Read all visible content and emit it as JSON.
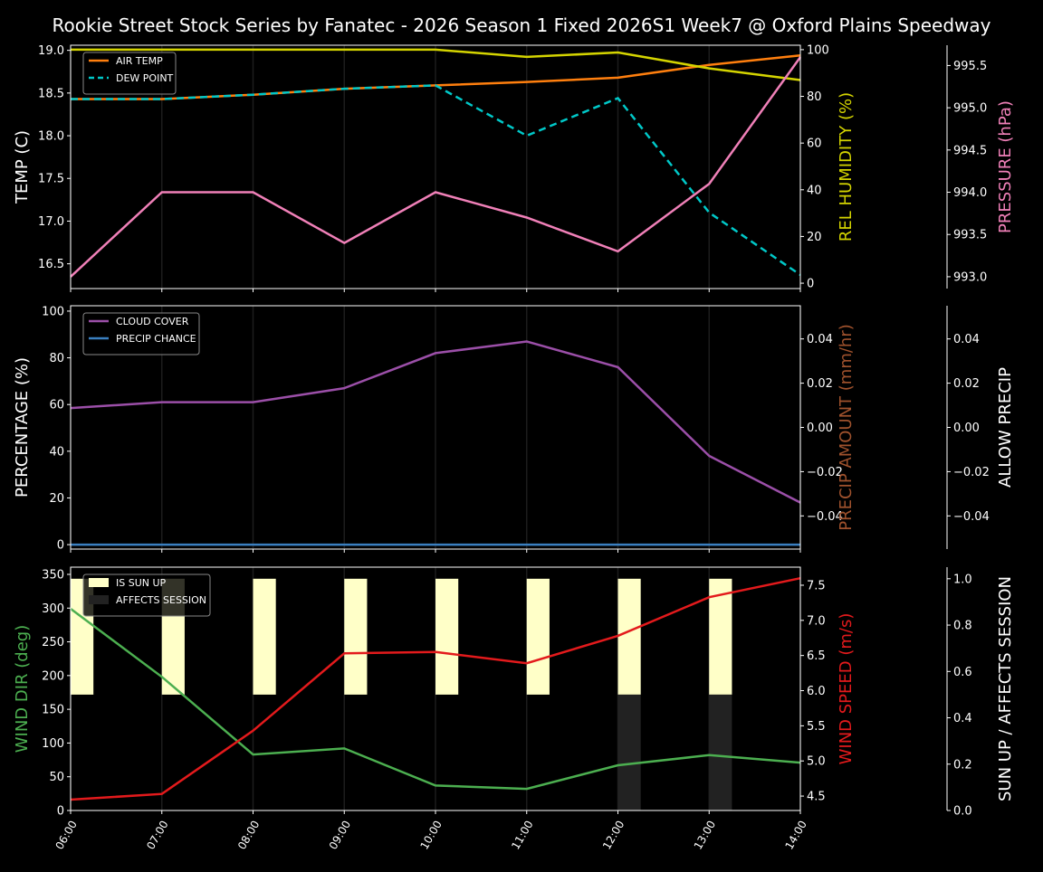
{
  "title": "Rookie Street Stock Series by Fanatec - 2026 Season 1 Fixed 2026S1 Week7 @ Oxford Plains Speedway",
  "chart_data": [
    {
      "type": "line",
      "x": [
        "06:00",
        "07:00",
        "08:00",
        "09:00",
        "10:00",
        "11:00",
        "12:00",
        "13:00",
        "14:00"
      ],
      "axes": {
        "left": {
          "label": "TEMP (C)",
          "color": "#ffffff",
          "ylim": [
            16.21,
            19.06
          ],
          "ticks": [
            16.5,
            17.0,
            17.5,
            18.0,
            18.5,
            19.0
          ],
          "tick_labels": [
            "16.5",
            "17.0",
            "17.5",
            "18.0",
            "18.5",
            "19.0"
          ]
        },
        "right1": {
          "label": "REL HUMIDITY (%)",
          "color": "#d4d400",
          "ylim": [
            -2.3,
            101.9
          ],
          "ticks": [
            0,
            20,
            40,
            60,
            80,
            100
          ],
          "tick_labels": [
            "0",
            "20",
            "40",
            "60",
            "80",
            "100"
          ]
        },
        "right2": {
          "label": "PRESSURE (hPa)",
          "color": "#f080b8",
          "ylim": [
            992.86,
            995.74
          ],
          "ticks": [
            993.0,
            993.5,
            994.0,
            994.5,
            995.0,
            995.5
          ],
          "tick_labels": [
            "993.0",
            "993.5",
            "994.0",
            "994.5",
            "995.0",
            "995.5"
          ]
        }
      },
      "series": [
        {
          "name": "AIR TEMP",
          "axis": "left",
          "color": "#ff7f0e",
          "dash": false,
          "values": [
            18.43,
            18.43,
            18.48,
            18.55,
            18.59,
            18.63,
            18.68,
            18.83,
            18.94
          ]
        },
        {
          "name": "DEW POINT",
          "axis": "left",
          "color": "#00c8c8",
          "dash": true,
          "values": [
            18.43,
            18.43,
            18.48,
            18.55,
            18.59,
            18.0,
            18.44,
            17.1,
            16.37
          ]
        },
        {
          "axis": "right1",
          "color": "#d4d400",
          "dash": false,
          "values": [
            100,
            100,
            100,
            100,
            100,
            96.9,
            98.8,
            92,
            87
          ]
        },
        {
          "axis": "right2",
          "color": "#f080b8",
          "dash": false,
          "values": [
            993.0,
            994.0,
            994.0,
            993.4,
            994.0,
            993.7,
            993.3,
            994.1,
            995.6
          ]
        }
      ],
      "legend": "top-left",
      "grid": "vertical"
    },
    {
      "type": "line",
      "x": [
        "06:00",
        "07:00",
        "08:00",
        "09:00",
        "10:00",
        "11:00",
        "12:00",
        "13:00",
        "14:00"
      ],
      "axes": {
        "left": {
          "label": "PERCENTAGE (%)",
          "color": "#ffffff",
          "ylim": [
            -1.9,
            102.3
          ],
          "ticks": [
            0,
            20,
            40,
            60,
            80,
            100
          ],
          "tick_labels": [
            "0",
            "20",
            "40",
            "60",
            "80",
            "100"
          ]
        },
        "right1": {
          "label": "PRECIP AMOUNT (mm/hr)",
          "color": "#a0522d",
          "ylim": [
            -0.055,
            0.055
          ],
          "ticks": [
            -0.04,
            -0.02,
            0,
            0.02,
            0.04
          ],
          "tick_labels": [
            "−0.04",
            "−0.02",
            "0.00",
            "0.02",
            "0.04"
          ]
        },
        "right2": {
          "label": "ALLOW PRECIP",
          "color": "#ffffff",
          "ylim": [
            -0.055,
            0.055
          ],
          "ticks": [
            -0.04,
            -0.02,
            0,
            0.02,
            0.04
          ],
          "tick_labels": [
            "−0.04",
            "−0.02",
            "0.00",
            "0.02",
            "0.04"
          ]
        }
      },
      "series": [
        {
          "name": "CLOUD COVER",
          "axis": "left",
          "color": "#9b4fa8",
          "dash": false,
          "values": [
            58.5,
            61,
            61,
            67,
            82,
            87,
            76,
            38,
            18
          ]
        },
        {
          "name": "PRECIP CHANCE",
          "axis": "left",
          "color": "#3a7fc0",
          "dash": false,
          "values": [
            0,
            0,
            0,
            0,
            0,
            0,
            0,
            0,
            0
          ]
        }
      ],
      "legend": "top-left",
      "grid": "vertical"
    },
    {
      "type": "line",
      "x": [
        "06:00",
        "07:00",
        "08:00",
        "09:00",
        "10:00",
        "11:00",
        "12:00",
        "13:00",
        "14:00"
      ],
      "axes": {
        "left": {
          "label": "WIND DIR (deg)",
          "color": "#4caf50",
          "ylim": [
            0,
            360.7
          ],
          "ticks": [
            0,
            50,
            100,
            150,
            200,
            250,
            300,
            350
          ],
          "tick_labels": [
            "0",
            "50",
            "100",
            "150",
            "200",
            "250",
            "300",
            "350"
          ]
        },
        "right1": {
          "label": "WIND SPEED (m/s)",
          "color": "#e31a1c",
          "ylim": [
            4.295,
            7.757
          ],
          "ticks": [
            4.5,
            5.0,
            5.5,
            6.0,
            6.5,
            7.0,
            7.5
          ],
          "tick_labels": [
            "4.5",
            "5.0",
            "5.5",
            "6.0",
            "6.5",
            "7.0",
            "7.5"
          ]
        },
        "right2": {
          "label": "SUN UP / AFFECTS SESSION",
          "color": "#ffffff",
          "ylim": [
            0,
            1.05
          ],
          "ticks": [
            0,
            0.2,
            0.4,
            0.6,
            0.8,
            1.0
          ],
          "tick_labels": [
            "0.0",
            "0.2",
            "0.4",
            "0.6",
            "0.8",
            "1.0"
          ]
        }
      },
      "series": [
        {
          "axis": "left",
          "color": "#4caf50",
          "dash": false,
          "values": [
            299,
            198,
            83,
            92,
            37,
            32,
            67,
            82,
            71
          ]
        },
        {
          "axis": "right1",
          "color": "#e31a1c",
          "dash": false,
          "values": [
            4.45,
            4.53,
            5.43,
            6.53,
            6.55,
            6.39,
            6.78,
            7.33,
            7.6
          ]
        }
      ],
      "bars": [
        {
          "name": "IS SUN UP",
          "color": "#ffffc8",
          "values": [
            1,
            1,
            1,
            1,
            1,
            1,
            1,
            1
          ]
        },
        {
          "name": "AFFECTS SESSION",
          "color": "#222222",
          "values": [
            0,
            0,
            0,
            0,
            0,
            0,
            1,
            1
          ]
        }
      ],
      "legend": "top-left",
      "grid": "vertical"
    }
  ]
}
